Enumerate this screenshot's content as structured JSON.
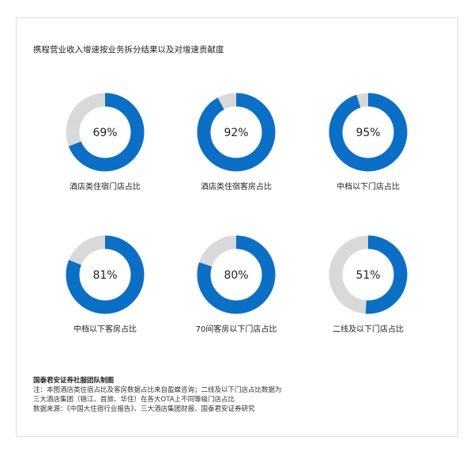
{
  "title": "携程营业收入增速按业务拆分结果以及对增速贡献度",
  "chart_data": {
    "type": "pie",
    "subtype": "donut",
    "colors": {
      "value": "#0a6fc6",
      "remainder": "#d9d9d9"
    },
    "items": [
      {
        "label": "酒店类住宿门店占比",
        "value": 69,
        "display": "69%"
      },
      {
        "label": "酒店类住宿客房占比",
        "value": 92,
        "display": "92%"
      },
      {
        "label": "中档以下门店占比",
        "value": 95,
        "display": "95%"
      },
      {
        "label": "中档以下客房占比",
        "value": 81,
        "display": "81%"
      },
      {
        "label": "70间客房以下门店占比",
        "value": 80,
        "display": "80%"
      },
      {
        "label": "二线及以下门店占比",
        "value": 51,
        "display": "51%"
      }
    ]
  },
  "footer": {
    "source_title": "国泰君安证券社服团队制图",
    "lines": [
      "注：本图酒店类住宿占比及客房数据占比来自盈蝶咨询；二线及以下门店占比数据为",
      "三大酒店集团（锦江、首旅、华住）在各大OTA上不同等级门店占比",
      "数据来源：《中国大住宿行业报告》、三大酒店集团财报、国泰君安证券研究"
    ]
  }
}
